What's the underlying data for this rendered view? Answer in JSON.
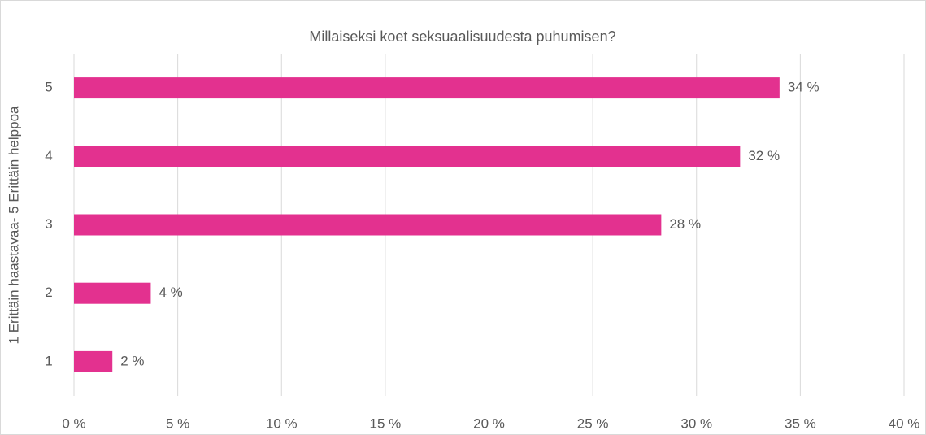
{
  "chart_data": {
    "type": "barh",
    "title": "Millaiseksi koet seksuaalisuudesta puhumisen?",
    "y_label": "1 Erittäin haastavaa- 5 Erittäin helppoa",
    "categories": [
      "1",
      "2",
      "3",
      "4",
      "5"
    ],
    "values": [
      1.85,
      3.7,
      28.3,
      32.1,
      34
    ],
    "value_labels": [
      "2 %",
      "4 %",
      "28 %",
      "32 %",
      "34 %"
    ],
    "color": "#e3318f",
    "xlim": [
      0,
      40
    ],
    "xticks": [
      {
        "value": 0,
        "label": "0 %"
      },
      {
        "value": 5,
        "label": "5 %"
      },
      {
        "value": 10,
        "label": "10 %"
      },
      {
        "value": 15,
        "label": "15 %"
      },
      {
        "value": 20,
        "label": "20 %"
      },
      {
        "value": 25,
        "label": "25 %"
      },
      {
        "value": 30,
        "label": "30 %"
      },
      {
        "value": 35,
        "label": "35 %"
      },
      {
        "value": 40,
        "label": "40 %"
      }
    ],
    "grid": true
  }
}
